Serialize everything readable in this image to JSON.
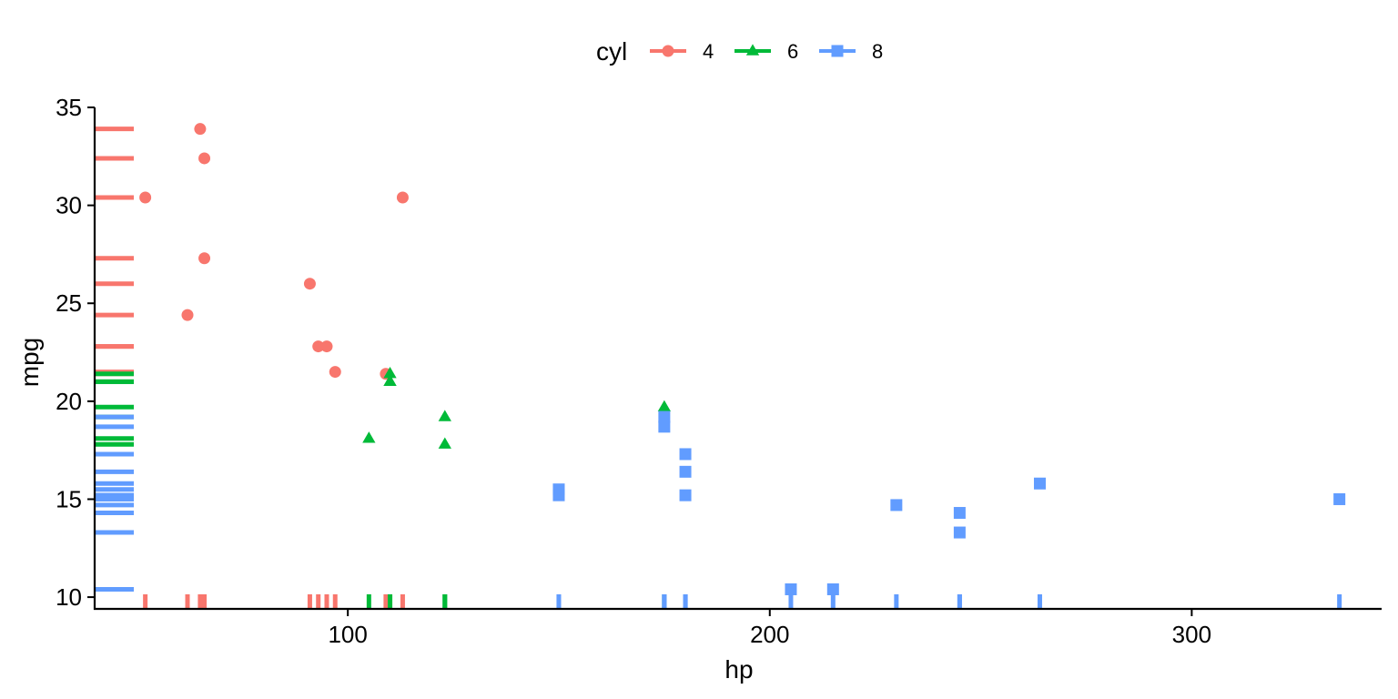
{
  "chart_data": {
    "type": "scatter",
    "xlabel": "hp",
    "ylabel": "mpg",
    "xlim": [
      40,
      345
    ],
    "ylim": [
      9.4,
      35
    ],
    "xticks": [
      100,
      200,
      300
    ],
    "yticks": [
      10,
      15,
      20,
      25,
      30,
      35
    ],
    "grid": false,
    "rug": true,
    "legend": {
      "title": "cyl",
      "position": "top"
    },
    "series": [
      {
        "name": "4",
        "color": "#F8766D",
        "marker": "circle",
        "points": [
          [
            93,
            22.8
          ],
          [
            62,
            24.4
          ],
          [
            95,
            22.8
          ],
          [
            66,
            32.4
          ],
          [
            52,
            30.4
          ],
          [
            65,
            33.9
          ],
          [
            97,
            21.5
          ],
          [
            66,
            27.3
          ],
          [
            91,
            26.0
          ],
          [
            113,
            30.4
          ],
          [
            109,
            21.4
          ]
        ]
      },
      {
        "name": "6",
        "color": "#00BA38",
        "marker": "triangle",
        "points": [
          [
            110,
            21.0
          ],
          [
            110,
            21.0
          ],
          [
            110,
            21.4
          ],
          [
            105,
            18.1
          ],
          [
            123,
            19.2
          ],
          [
            123,
            17.8
          ],
          [
            175,
            19.7
          ]
        ]
      },
      {
        "name": "8",
        "color": "#619CFF",
        "marker": "square",
        "points": [
          [
            175,
            18.7
          ],
          [
            245,
            14.3
          ],
          [
            180,
            16.4
          ],
          [
            180,
            17.3
          ],
          [
            180,
            15.2
          ],
          [
            205,
            10.4
          ],
          [
            215,
            10.4
          ],
          [
            230,
            14.7
          ],
          [
            150,
            15.5
          ],
          [
            150,
            15.2
          ],
          [
            245,
            13.3
          ],
          [
            175,
            19.2
          ],
          [
            264,
            15.8
          ],
          [
            335,
            15.0
          ]
        ]
      }
    ]
  }
}
